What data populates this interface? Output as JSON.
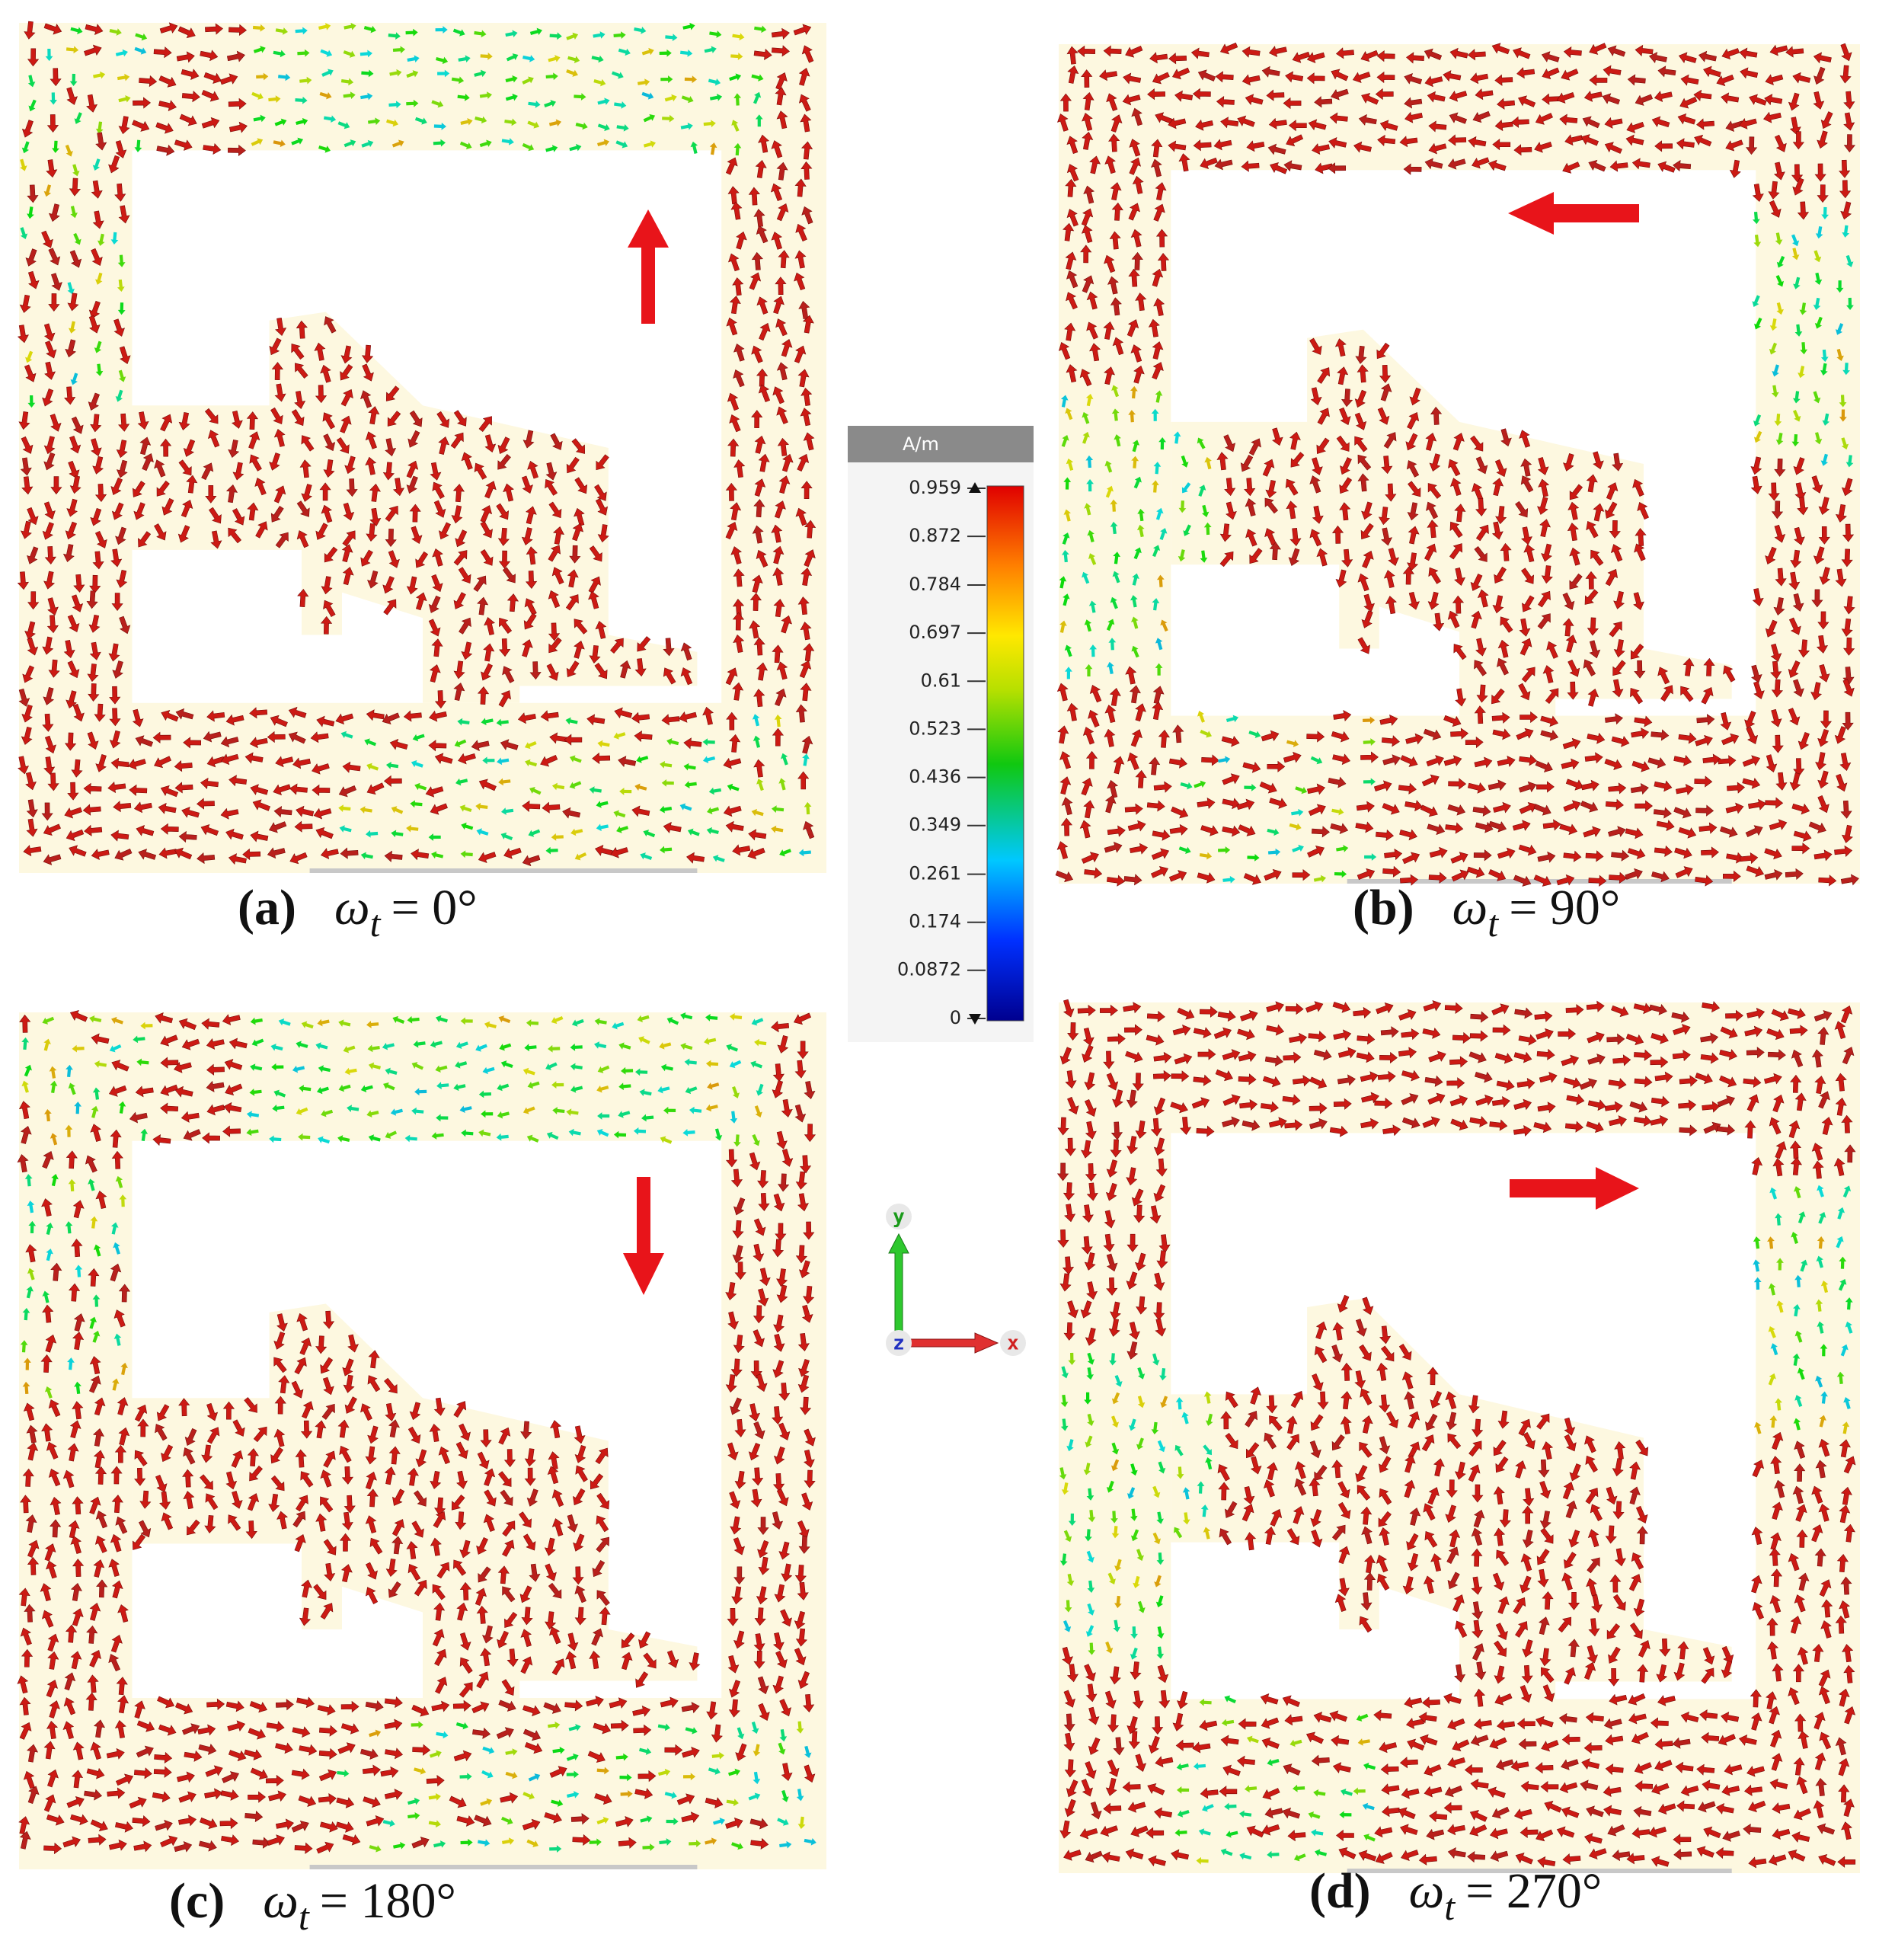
{
  "panels": [
    {
      "label": "(a)",
      "symbol": "ω",
      "subscript": "t",
      "expression": "= 0°"
    },
    {
      "label": "(b)",
      "symbol": "ω",
      "subscript": "t",
      "expression": "= 90°"
    },
    {
      "label": "(c)",
      "symbol": "ω",
      "subscript": "t",
      "expression": "= 180°"
    },
    {
      "label": "(d)",
      "symbol": "ω",
      "subscript": "t",
      "expression": "= 270°"
    }
  ],
  "colorbar": {
    "unit": "A/m",
    "ticks": [
      0.959,
      0.872,
      0.784,
      0.697,
      0.61,
      0.523,
      0.436,
      0.349,
      0.261,
      0.174,
      0.0872,
      0
    ]
  },
  "axes": {
    "y": "y",
    "z": "z",
    "x": "x"
  }
}
